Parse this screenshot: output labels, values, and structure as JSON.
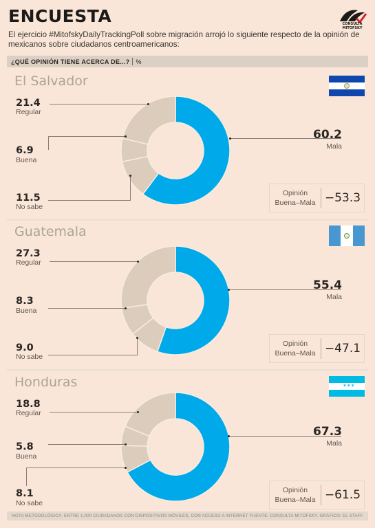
{
  "header": {
    "title": "ENCUESTA",
    "logo_text": "CONSULTA MITOFSKY",
    "intro": "El ejercicio #MitofskyDailyTrackingPoll sobre migración arrojó lo siguiente respecto de la opinión de mexicanos sobre ciudadanos centroamericanos:",
    "question": "¿QUÉ OPINIÓN TIENE ACERCA DE...?",
    "unit": "%"
  },
  "colors": {
    "mala": "#00a9e9",
    "otras": "#dcccbc",
    "divider": "#f8ece0"
  },
  "net_label_line1": "Opinión",
  "net_label_line2": "Buena–Mala",
  "chart_data": [
    {
      "type": "pie",
      "title": "El Salvador",
      "categories": [
        "Mala",
        "Buena",
        "Regular",
        "No sabe"
      ],
      "values": [
        60.2,
        6.9,
        21.4,
        11.5
      ],
      "net_value": "−53.3"
    },
    {
      "type": "pie",
      "title": "Guatemala",
      "categories": [
        "Mala",
        "Buena",
        "Regular",
        "No sabe"
      ],
      "values": [
        55.4,
        8.3,
        27.3,
        9.0
      ],
      "net_value": "−47.1"
    },
    {
      "type": "pie",
      "title": "Honduras",
      "categories": [
        "Mala",
        "Buena",
        "Regular",
        "No sabe"
      ],
      "values": [
        67.3,
        5.8,
        18.8,
        8.1
      ],
      "net_value": "−61.5"
    }
  ],
  "footer": "NOTA METODOLÓGICA: ENTRE 1,000 CIUDADANOS CON DISPOSITIVOS MÓVILES, CON ACCESO A INTERNET FUENTE: CONSULTA MITOFSKY. GRÁFICO: EL STAFF"
}
